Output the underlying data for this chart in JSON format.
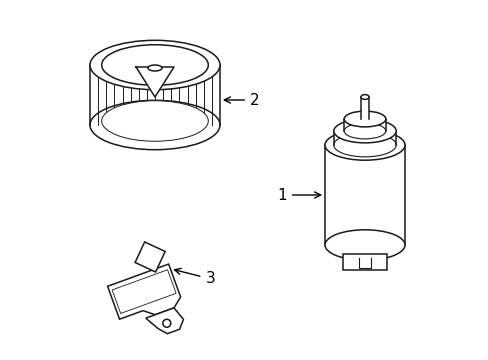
{
  "background_color": "#ffffff",
  "line_color": "#1a1a1a",
  "label_color": "#000000",
  "arrow_color": "#000000",
  "font_size": 10,
  "figsize": [
    4.89,
    3.6
  ],
  "dpi": 100
}
